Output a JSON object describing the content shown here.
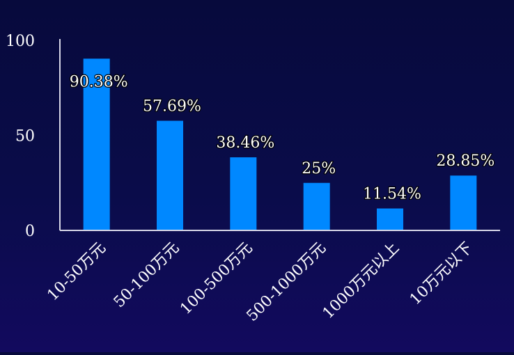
{
  "chart_data": {
    "type": "bar",
    "categories": [
      "10-50万元",
      "50-100万元",
      "100-500万元",
      "500-1000万元",
      "1000万元以上",
      "10万元以下"
    ],
    "values": [
      90.38,
      57.69,
      38.46,
      25,
      11.54,
      28.85
    ],
    "data_labels": [
      "90.38%",
      "57.69%",
      "38.46%",
      "25%",
      "11.54%",
      "28.85%"
    ],
    "y_ticks": [
      "0",
      "50",
      "100"
    ],
    "ylim": [
      0,
      100
    ],
    "title": "",
    "xlabel": "",
    "ylabel": "",
    "grid": false,
    "legend": "none",
    "colors": {
      "bar": "#0088ff",
      "axis": "#d8d8e8",
      "text": "#ffffff",
      "background_top": "#070a3c",
      "background_bottom": "#120a5e"
    }
  }
}
